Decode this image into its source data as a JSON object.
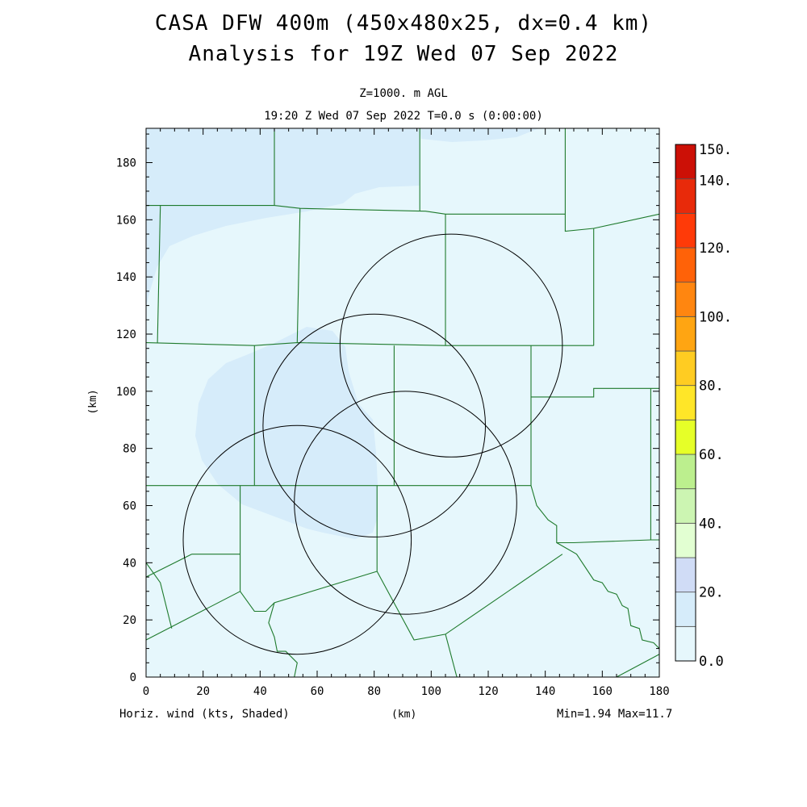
{
  "header": {
    "title_line1": "CASA DFW 400m (450x480x25, dx=0.4 km)",
    "title_line2": "Analysis for 19Z Wed 07 Sep 2022",
    "level": "Z=1000. m AGL",
    "time": "19:20 Z Wed 07 Sep 2022   T=0.0 s (0:00:00)"
  },
  "footer": {
    "left": "Horiz. wind (kts, Shaded)",
    "center": "(km)",
    "right": "Min=1.94 Max=11.7"
  },
  "chart_data": {
    "type": "heatmap",
    "title": "CASA DFW 400m (450x480x25, dx=0.4 km)",
    "subtitle": "Analysis for 19Z Wed 07 Sep 2022",
    "xlabel": "(km)",
    "ylabel": "(km)",
    "xlim": [
      0,
      180
    ],
    "ylim": [
      0,
      192
    ],
    "x_ticks": [
      0,
      20,
      40,
      60,
      80,
      100,
      120,
      140,
      160,
      180
    ],
    "y_ticks": [
      0,
      20,
      40,
      60,
      80,
      100,
      120,
      140,
      160,
      180
    ],
    "field": "Horiz. wind (kts, Shaded)",
    "field_min": 1.94,
    "field_max": 11.7,
    "colorbar": {
      "min": 0,
      "max": 150,
      "step": 10,
      "labels": [
        "0.0",
        "20.",
        "40.",
        "60.",
        "80.",
        "100.",
        "120.",
        "140.",
        "150."
      ],
      "label_values": [
        0,
        20,
        40,
        60,
        80,
        100,
        120,
        140,
        150
      ],
      "colors": [
        "#e6f7fc",
        "#d6ecfa",
        "#d0dcf6",
        "#e2ffd2",
        "#ccf5b2",
        "#bcef8e",
        "#e6ff28",
        "#ffe628",
        "#ffcc22",
        "#ffa512",
        "#ff8610",
        "#ff6208",
        "#ff3a08",
        "#e82a0a",
        "#cc1006"
      ]
    },
    "radar_rings": [
      {
        "center": [
          107,
          116
        ],
        "radius_km": 39
      },
      {
        "center": [
          80,
          88
        ],
        "radius_km": 39
      },
      {
        "center": [
          91,
          61
        ],
        "radius_km": 39
      },
      {
        "center": [
          53,
          48
        ],
        "radius_km": 40
      }
    ],
    "county_lines": [
      [
        [
          0,
          165
        ],
        [
          45,
          165
        ],
        [
          54,
          164
        ],
        [
          98,
          163
        ],
        [
          105,
          162
        ],
        [
          147,
          162
        ]
      ],
      [
        [
          45,
          192
        ],
        [
          45,
          165
        ]
      ],
      [
        [
          96,
          192
        ],
        [
          96,
          163
        ]
      ],
      [
        [
          54,
          164
        ],
        [
          53,
          117
        ]
      ],
      [
        [
          105,
          162
        ],
        [
          105,
          116
        ]
      ],
      [
        [
          5,
          165
        ],
        [
          4,
          117
        ]
      ],
      [
        [
          0,
          117
        ],
        [
          38,
          116
        ],
        [
          53,
          117
        ],
        [
          105,
          116
        ],
        [
          157,
          116
        ]
      ],
      [
        [
          147,
          192
        ],
        [
          147,
          156
        ],
        [
          157,
          157
        ],
        [
          180,
          162
        ]
      ],
      [
        [
          157,
          157
        ],
        [
          157,
          116
        ]
      ],
      [
        [
          38,
          116
        ],
        [
          38,
          67
        ]
      ],
      [
        [
          87,
          116
        ],
        [
          87,
          67
        ]
      ],
      [
        [
          135,
          116
        ],
        [
          135,
          67
        ]
      ],
      [
        [
          0,
          67
        ],
        [
          33,
          67
        ],
        [
          38,
          67
        ],
        [
          87,
          67
        ],
        [
          135,
          67
        ]
      ],
      [
        [
          135,
          98
        ],
        [
          157,
          98
        ],
        [
          157,
          101
        ],
        [
          177,
          101
        ],
        [
          180,
          101
        ]
      ],
      [
        [
          177,
          101
        ],
        [
          177,
          48
        ],
        [
          180,
          48
        ]
      ],
      [
        [
          33,
          67
        ],
        [
          33,
          30
        ]
      ],
      [
        [
          16,
          43
        ],
        [
          33,
          43
        ]
      ],
      [
        [
          0,
          35
        ],
        [
          16,
          43
        ]
      ],
      [
        [
          0,
          13
        ],
        [
          33,
          30
        ],
        [
          38,
          23
        ],
        [
          42,
          23
        ],
        [
          45,
          26
        ],
        [
          81,
          37
        ]
      ],
      [
        [
          0,
          40
        ],
        [
          5,
          33
        ],
        [
          9,
          17
        ]
      ],
      [
        [
          81,
          67
        ],
        [
          81,
          37
        ],
        [
          94,
          13
        ],
        [
          105,
          15
        ],
        [
          146,
          43
        ]
      ],
      [
        [
          105,
          15
        ],
        [
          109,
          0
        ]
      ],
      [
        [
          135,
          67
        ],
        [
          137,
          60
        ],
        [
          141,
          55
        ],
        [
          144,
          53
        ],
        [
          144,
          47
        ],
        [
          150,
          47
        ],
        [
          177,
          48
        ]
      ],
      [
        [
          144,
          47
        ],
        [
          151,
          43
        ],
        [
          157,
          34
        ],
        [
          160,
          33
        ],
        [
          162,
          30
        ],
        [
          165,
          29
        ],
        [
          167,
          25
        ],
        [
          169,
          24
        ],
        [
          170,
          18
        ],
        [
          173,
          17
        ],
        [
          174,
          13
        ],
        [
          178,
          12
        ],
        [
          180,
          10
        ]
      ],
      [
        [
          165,
          0
        ],
        [
          180,
          8
        ]
      ],
      [
        [
          45,
          26
        ],
        [
          43,
          19
        ],
        [
          45,
          14
        ],
        [
          46,
          9
        ],
        [
          49,
          9
        ],
        [
          53,
          5
        ],
        [
          52,
          0
        ]
      ]
    ]
  }
}
